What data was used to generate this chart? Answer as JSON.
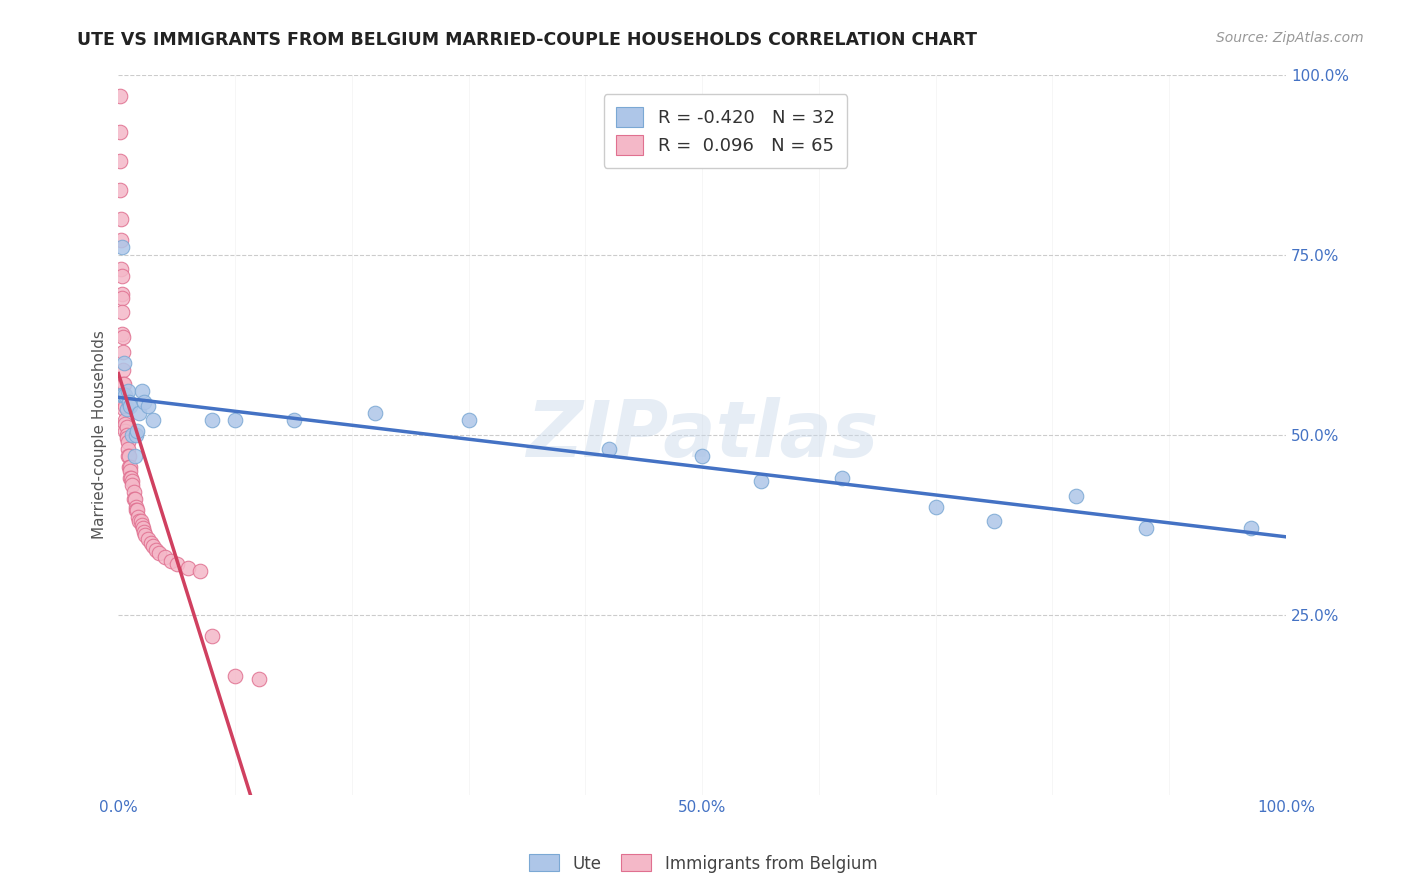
{
  "title": "UTE VS IMMIGRANTS FROM BELGIUM MARRIED-COUPLE HOUSEHOLDS CORRELATION CHART",
  "source": "Source: ZipAtlas.com",
  "ylabel": "Married-couple Households",
  "blue_color": "#aec6e8",
  "pink_color": "#f4b8c8",
  "blue_line_color": "#4472c4",
  "pink_line_color": "#d04060",
  "pink_dash_color": "#d0a0b0",
  "watermark": "ZIPatlas",
  "legend_entry1": "R = -0.420   N = 32",
  "legend_entry2": "R =  0.096   N = 65",
  "blue_scatter_x": [
    0.002,
    0.003,
    0.004,
    0.005,
    0.006,
    0.007,
    0.008,
    0.009,
    0.01,
    0.012,
    0.014,
    0.015,
    0.016,
    0.018,
    0.02,
    0.022,
    0.025,
    0.03,
    0.08,
    0.1,
    0.15,
    0.22,
    0.3,
    0.42,
    0.5,
    0.55,
    0.62,
    0.7,
    0.75,
    0.82,
    0.88,
    0.97
  ],
  "blue_scatter_y": [
    0.555,
    0.76,
    0.555,
    0.6,
    0.555,
    0.535,
    0.56,
    0.545,
    0.54,
    0.5,
    0.47,
    0.5,
    0.505,
    0.53,
    0.56,
    0.545,
    0.54,
    0.52,
    0.52,
    0.52,
    0.52,
    0.53,
    0.52,
    0.48,
    0.47,
    0.435,
    0.44,
    0.4,
    0.38,
    0.415,
    0.37,
    0.37
  ],
  "pink_scatter_x": [
    0.001,
    0.001,
    0.001,
    0.001,
    0.002,
    0.002,
    0.002,
    0.003,
    0.003,
    0.003,
    0.003,
    0.003,
    0.004,
    0.004,
    0.004,
    0.004,
    0.005,
    0.005,
    0.005,
    0.005,
    0.005,
    0.006,
    0.006,
    0.006,
    0.006,
    0.007,
    0.007,
    0.007,
    0.008,
    0.008,
    0.008,
    0.009,
    0.009,
    0.01,
    0.01,
    0.01,
    0.011,
    0.012,
    0.012,
    0.013,
    0.013,
    0.014,
    0.015,
    0.015,
    0.016,
    0.017,
    0.018,
    0.019,
    0.02,
    0.021,
    0.022,
    0.023,
    0.025,
    0.028,
    0.03,
    0.032,
    0.035,
    0.04,
    0.045,
    0.05,
    0.06,
    0.07,
    0.08,
    0.1,
    0.12
  ],
  "pink_scatter_y": [
    0.97,
    0.92,
    0.88,
    0.84,
    0.8,
    0.77,
    0.73,
    0.72,
    0.695,
    0.69,
    0.67,
    0.64,
    0.635,
    0.615,
    0.59,
    0.57,
    0.57,
    0.555,
    0.555,
    0.545,
    0.535,
    0.54,
    0.52,
    0.515,
    0.505,
    0.51,
    0.5,
    0.495,
    0.49,
    0.48,
    0.47,
    0.47,
    0.455,
    0.455,
    0.45,
    0.44,
    0.44,
    0.435,
    0.43,
    0.42,
    0.41,
    0.41,
    0.4,
    0.395,
    0.395,
    0.385,
    0.38,
    0.38,
    0.375,
    0.37,
    0.365,
    0.36,
    0.355,
    0.35,
    0.345,
    0.34,
    0.335,
    0.33,
    0.325,
    0.32,
    0.315,
    0.31,
    0.22,
    0.165,
    0.16
  ],
  "xlim": [
    0.0,
    1.0
  ],
  "ylim": [
    0.0,
    1.0
  ],
  "xgrid_minor": [
    0.1,
    0.2,
    0.3,
    0.4,
    0.5,
    0.6,
    0.7,
    0.8,
    0.9
  ],
  "ygrid_lines": [
    0.25,
    0.5,
    0.75,
    1.0
  ]
}
